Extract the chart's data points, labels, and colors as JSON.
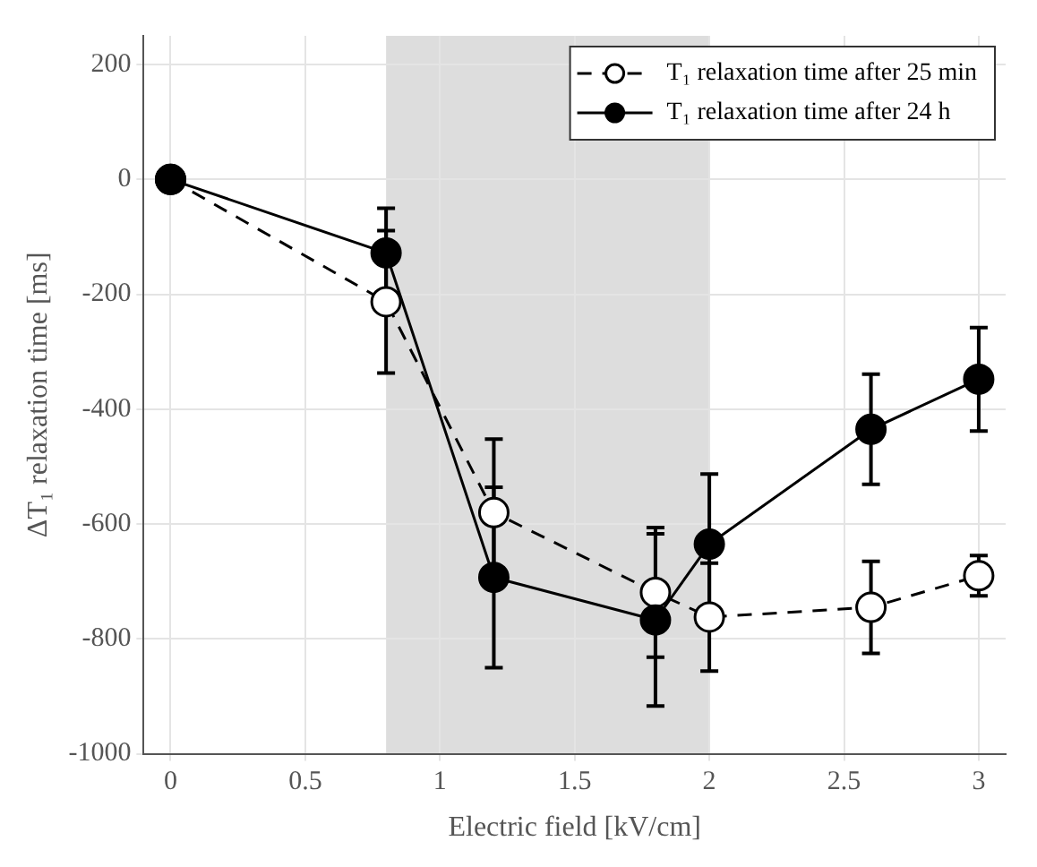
{
  "chart_data": {
    "type": "line",
    "xlabel": "Electric field [kV/cm]",
    "ylabel": "ΔT₁ relaxation time [ms]",
    "x": [
      0,
      0.8,
      1.2,
      1.8,
      2,
      2.6,
      3
    ],
    "series": [
      {
        "name": "T₁ relaxation time after 25 min",
        "color": "#000000",
        "line_style": "dashed",
        "values": [
          0,
          -213,
          -580,
          -719,
          -762,
          -745,
          -690
        ],
        "errors": [
          null,
          124,
          128,
          113,
          94,
          80,
          35
        ]
      },
      {
        "name": "T₁ relaxation time after 24 h",
        "color": "#000000",
        "line_style": "solid",
        "values": [
          0,
          -128,
          -693,
          -767,
          -635,
          -435,
          -348
        ],
        "errors": [
          null,
          78,
          157,
          150,
          122,
          96,
          90
        ]
      }
    ],
    "xlim": [
      -0.1,
      3.1
    ],
    "xticks": [
      0,
      0.5,
      1,
      1.5,
      2,
      2.5,
      3
    ],
    "ylim": [
      -1000,
      250
    ],
    "yticks": [
      -1000,
      -800,
      -600,
      -400,
      -200,
      0,
      200
    ],
    "bands": [
      {
        "axis": "x",
        "from": 0.8,
        "to": 2,
        "color": "#dddddd"
      }
    ],
    "grid": true,
    "legend": "top right",
    "marker": "circle"
  }
}
